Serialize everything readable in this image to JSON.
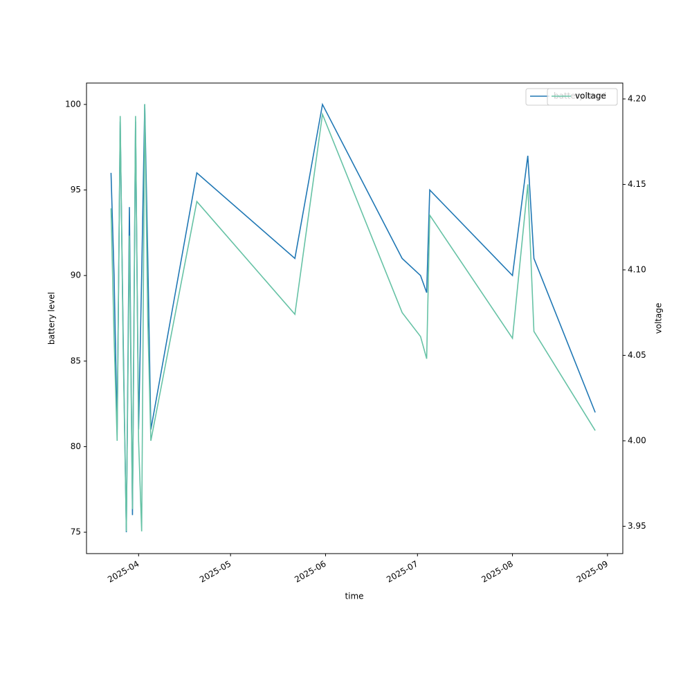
{
  "chart_data": {
    "type": "line",
    "xlabel": "time",
    "ylabel": "battery level",
    "y2label": "voltage",
    "x": [
      "2025-03-23",
      "2025-03-24",
      "2025-03-25",
      "2025-03-26",
      "2025-03-27",
      "2025-03-28",
      "2025-03-29",
      "2025-03-30",
      "2025-03-31",
      "2025-04-01",
      "2025-04-02",
      "2025-04-03",
      "2025-04-04",
      "2025-04-05",
      "2025-04-20",
      "2025-05-22",
      "2025-05-31",
      "2025-06-26",
      "2025-07-02",
      "2025-07-04",
      "2025-07-05",
      "2025-08-01",
      "2025-08-06",
      "2025-08-08",
      "2025-08-28"
    ],
    "series": [
      {
        "name": "battery level",
        "color": "#1f77b4",
        "values": [
          96,
          90,
          81,
          99,
          86,
          75,
          94,
          76,
          99,
          81,
          90,
          100,
          91,
          81,
          96,
          91,
          100,
          91,
          90,
          89,
          95,
          90,
          97,
          91,
          82
        ]
      },
      {
        "name": "voltage",
        "color": "#66c2a5",
        "axis": "y2",
        "values": [
          4.136,
          4.06,
          4.0,
          4.19,
          4.05,
          3.947,
          4.12,
          3.96,
          4.19,
          4.0,
          3.947,
          4.197,
          4.07,
          4.0,
          4.14,
          4.074,
          4.191,
          4.075,
          4.061,
          4.048,
          4.132,
          4.06,
          4.15,
          4.064,
          4.006
        ]
      }
    ],
    "xlim": [
      "2025-03-15",
      "2025-09-06"
    ],
    "xticks": [
      {
        "value": "2025-04-01",
        "label": "2025-04"
      },
      {
        "value": "2025-05-01",
        "label": "2025-05"
      },
      {
        "value": "2025-06-01",
        "label": "2025-06"
      },
      {
        "value": "2025-07-01",
        "label": "2025-07"
      },
      {
        "value": "2025-08-01",
        "label": "2025-08"
      },
      {
        "value": "2025-09-01",
        "label": "2025-09"
      }
    ],
    "ylim": [
      73.75,
      101.25
    ],
    "yticks": [
      75,
      80,
      85,
      90,
      95,
      100
    ],
    "y2lim": [
      3.934,
      4.2093
    ],
    "y2ticks": [
      3.95,
      {
        "value": 4.0,
        "label": "4.00"
      },
      4.05,
      {
        "value": 4.1,
        "label": "4.10"
      },
      4.15,
      {
        "value": 4.2,
        "label": "4.20"
      }
    ],
    "legend": "upper right",
    "grid": false
  }
}
